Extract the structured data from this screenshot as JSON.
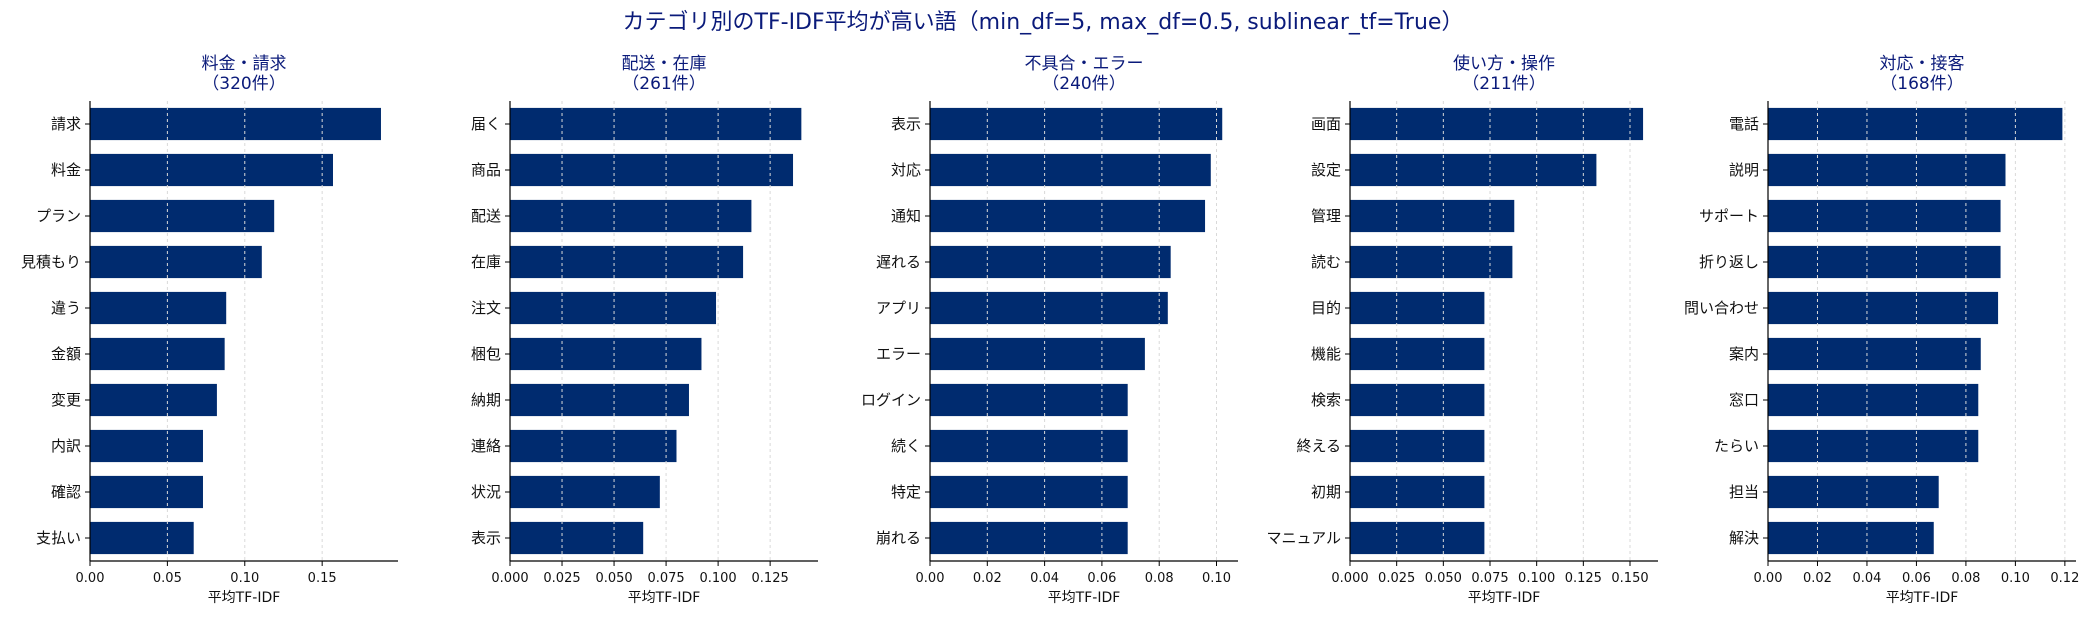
{
  "figure": {
    "title": "カテゴリ別のTF-IDF平均が高い語（min_df=5, max_df=0.5, sublinear_tf=True）",
    "bar_color": "#002b6f",
    "title_color": "#0a1a7a"
  },
  "chart_data": [
    {
      "type": "bar",
      "orientation": "horizontal",
      "title": "料金・請求",
      "subtitle": "（320件）",
      "xlabel": "平均TF-IDF",
      "categories": [
        "請求",
        "料金",
        "プラン",
        "見積もり",
        "違う",
        "金額",
        "変更",
        "内訳",
        "確認",
        "支払い"
      ],
      "values": [
        0.188,
        0.157,
        0.119,
        0.111,
        0.088,
        0.087,
        0.082,
        0.073,
        0.073,
        0.067
      ],
      "xlim": [
        0,
        0.199
      ],
      "xticks": [
        0.0,
        0.05,
        0.1,
        0.15
      ],
      "xtick_labels": [
        "0.00",
        "0.05",
        "0.10",
        "0.15"
      ],
      "grid": "x"
    },
    {
      "type": "bar",
      "orientation": "horizontal",
      "title": "配送・在庫",
      "subtitle": "（261件）",
      "xlabel": "平均TF-IDF",
      "categories": [
        "届く",
        "商品",
        "配送",
        "在庫",
        "注文",
        "梱包",
        "納期",
        "連絡",
        "状況",
        "表示"
      ],
      "values": [
        0.14,
        0.136,
        0.116,
        0.112,
        0.099,
        0.092,
        0.086,
        0.08,
        0.072,
        0.064
      ],
      "xlim": [
        0,
        0.148
      ],
      "xticks": [
        0.0,
        0.025,
        0.05,
        0.075,
        0.1,
        0.125
      ],
      "xtick_labels": [
        "0.000",
        "0.025",
        "0.050",
        "0.075",
        "0.100",
        "0.125"
      ],
      "grid": "x"
    },
    {
      "type": "bar",
      "orientation": "horizontal",
      "title": "不具合・エラー",
      "subtitle": "（240件）",
      "xlabel": "平均TF-IDF",
      "categories": [
        "表示",
        "対応",
        "通知",
        "遅れる",
        "アプリ",
        "エラー",
        "ログイン",
        "続く",
        "特定",
        "崩れる"
      ],
      "values": [
        0.102,
        0.098,
        0.096,
        0.084,
        0.083,
        0.075,
        0.069,
        0.069,
        0.069,
        0.069
      ],
      "xlim": [
        0,
        0.1075
      ],
      "xticks": [
        0.0,
        0.02,
        0.04,
        0.06,
        0.08,
        0.1
      ],
      "xtick_labels": [
        "0.00",
        "0.02",
        "0.04",
        "0.06",
        "0.08",
        "0.10"
      ],
      "grid": "x"
    },
    {
      "type": "bar",
      "orientation": "horizontal",
      "title": "使い方・操作",
      "subtitle": "（211件）",
      "xlabel": "平均TF-IDF",
      "categories": [
        "画面",
        "設定",
        "管理",
        "読む",
        "目的",
        "機能",
        "検索",
        "終える",
        "初期",
        "マニュアル"
      ],
      "values": [
        0.157,
        0.132,
        0.088,
        0.087,
        0.072,
        0.072,
        0.072,
        0.072,
        0.072,
        0.072
      ],
      "xlim": [
        0,
        0.165
      ],
      "xticks": [
        0.0,
        0.025,
        0.05,
        0.075,
        0.1,
        0.125,
        0.15
      ],
      "xtick_labels": [
        "0.000",
        "0.025",
        "0.050",
        "0.075",
        "0.100",
        "0.125",
        "0.150"
      ],
      "grid": "x"
    },
    {
      "type": "bar",
      "orientation": "horizontal",
      "title": "対応・接客",
      "subtitle": "（168件）",
      "xlabel": "平均TF-IDF",
      "categories": [
        "電話",
        "説明",
        "サポート",
        "折り返し",
        "問い合わせ",
        "案内",
        "窓口",
        "たらい",
        "担当",
        "解決"
      ],
      "values": [
        0.119,
        0.096,
        0.094,
        0.094,
        0.093,
        0.086,
        0.085,
        0.085,
        0.069,
        0.067
      ],
      "xlim": [
        0,
        0.1245
      ],
      "xticks": [
        0.0,
        0.02,
        0.04,
        0.06,
        0.08,
        0.1,
        0.12
      ],
      "xtick_labels": [
        "0.00",
        "0.02",
        "0.04",
        "0.06",
        "0.08",
        "0.10",
        "0.12"
      ],
      "grid": "x"
    }
  ]
}
